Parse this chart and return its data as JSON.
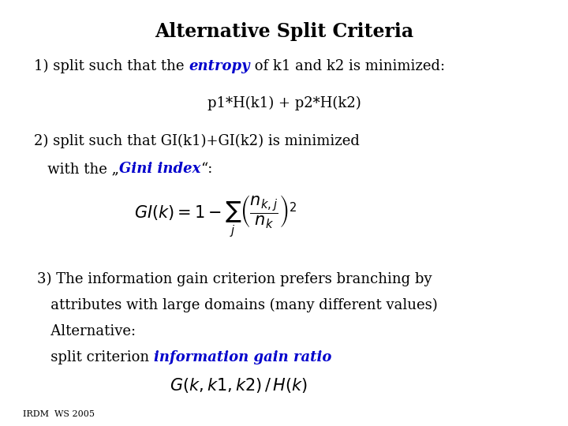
{
  "title": "Alternative Split Criteria",
  "background_color": "#ffffff",
  "text_color": "#000000",
  "blue_color": "#0000cc",
  "footer": "IRDM  WS 2005",
  "gini_formula": "$GI(k) = 1 - \\sum_{j} \\left(\\dfrac{n_{k,j}}{n_k}\\right)^2$",
  "gain_ratio_formula": "$G(k, k1, k2)\\,/\\,H(k)$",
  "fig_width": 7.2,
  "fig_height": 5.4,
  "dpi": 100
}
